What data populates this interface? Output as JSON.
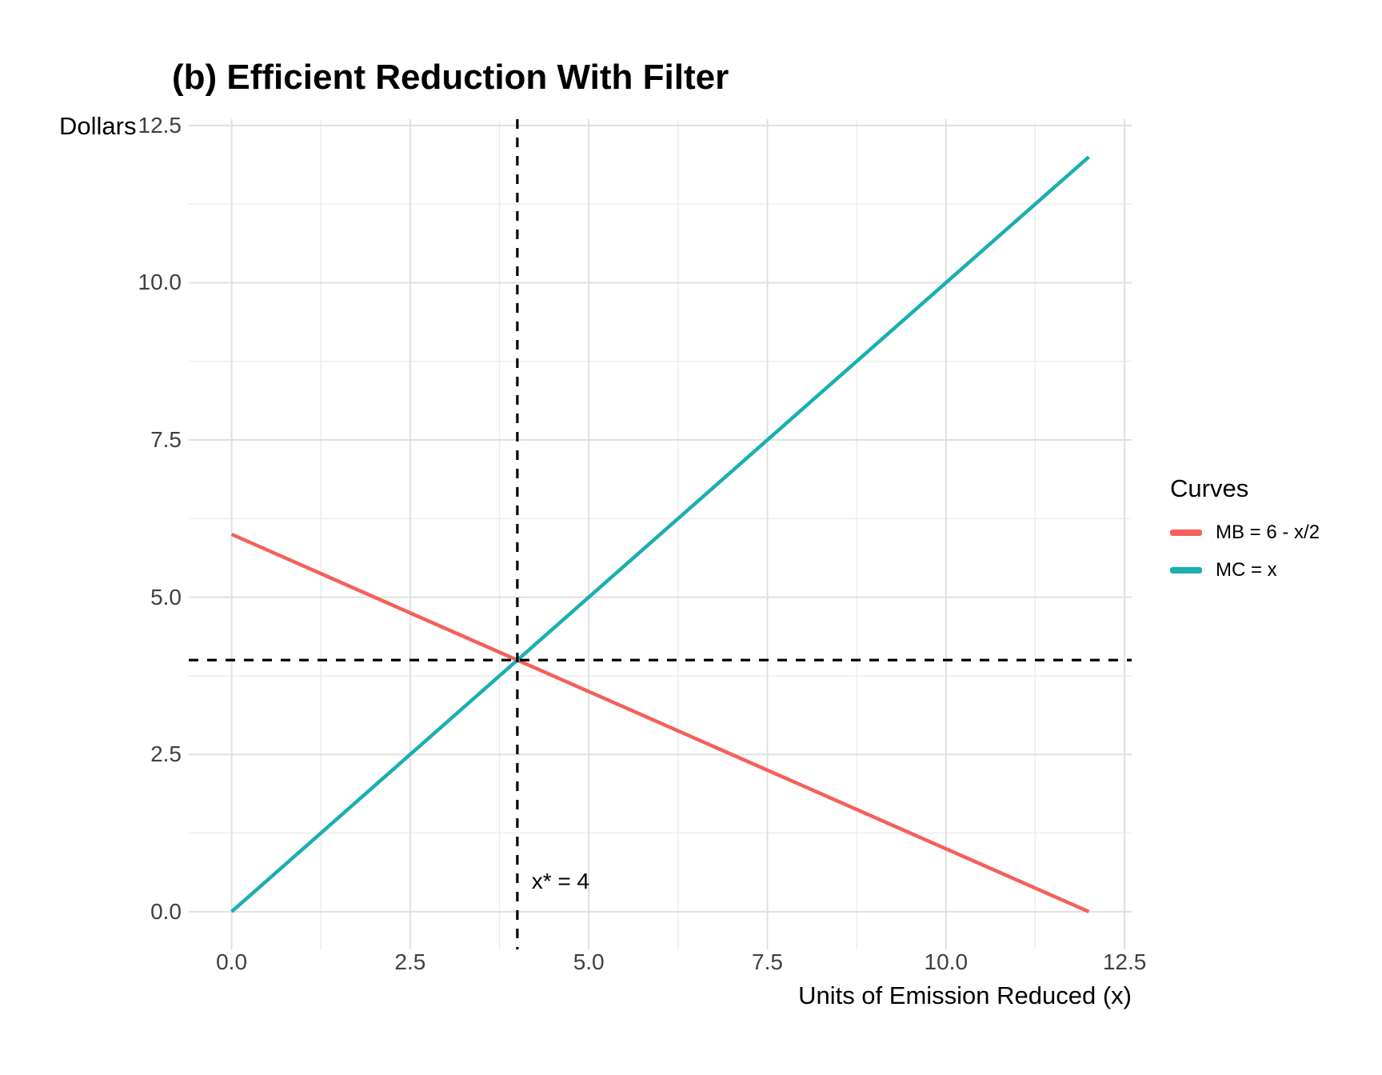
{
  "chart_data": {
    "type": "line",
    "title": "(b) Efficient Reduction With Filter",
    "xlabel": "Units of Emission Reduced (x)",
    "ylabel": "Dollars",
    "xlim": [
      -0.6,
      12.6
    ],
    "ylim": [
      -0.6,
      12.6
    ],
    "x_major_ticks": [
      0,
      2.5,
      5,
      7.5,
      10,
      12.5
    ],
    "x_tick_labels": [
      "0.0",
      "2.5",
      "5.0",
      "7.5",
      "10.0",
      "12.5"
    ],
    "y_major_ticks": [
      0,
      2.5,
      5,
      7.5,
      10,
      12.5
    ],
    "y_tick_labels": [
      "0.0",
      "2.5",
      "5.0",
      "7.5",
      "10.0",
      "12.5"
    ],
    "grid": {
      "show_major": true,
      "show_minor": true,
      "major_color": "#E0E0E0",
      "minor_color": "#EBEBEB"
    },
    "series": [
      {
        "name": "MB = 6 - x/2",
        "color": "#F4605A",
        "x": [
          0,
          12
        ],
        "y": [
          6,
          0
        ]
      },
      {
        "name": "MC = x",
        "color": "#1AAFB0",
        "x": [
          0,
          12
        ],
        "y": [
          0,
          12
        ]
      }
    ],
    "reference_lines": [
      {
        "orientation": "vertical",
        "at": 4,
        "style": "dashed",
        "color": "#000000"
      },
      {
        "orientation": "horizontal",
        "at": 4,
        "style": "dashed",
        "color": "#000000"
      }
    ],
    "annotation": {
      "text": "x* = 4",
      "x": 4.2,
      "y": 0.48
    },
    "legend": {
      "title": "Curves",
      "position": "right"
    },
    "tick_label_color": "#404040"
  }
}
